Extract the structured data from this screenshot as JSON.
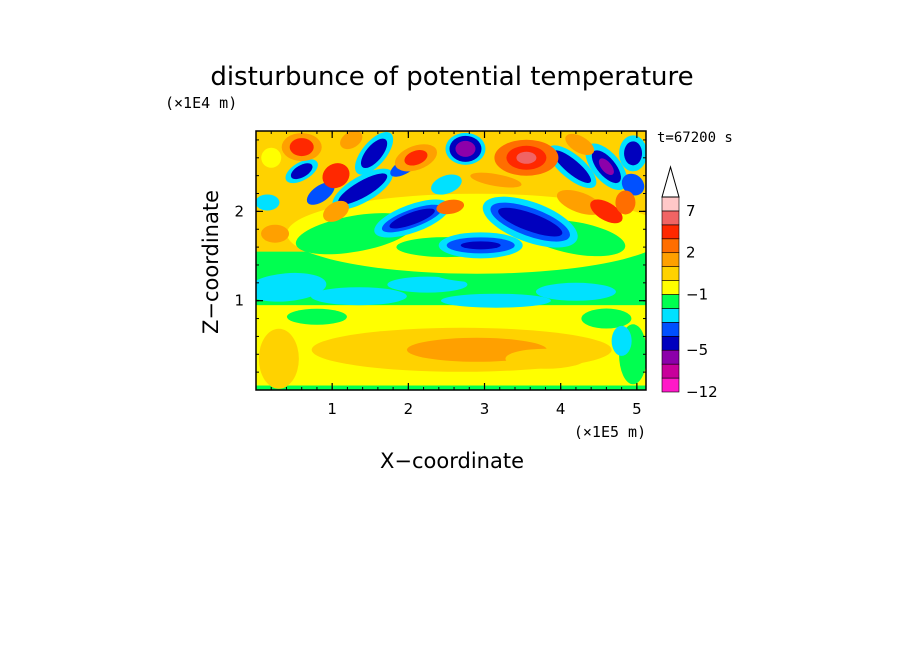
{
  "chart_data": {
    "type": "heatmap",
    "title": "disturbunce of potential temperature",
    "xlabel": "X−coordinate",
    "ylabel": "Z−coordinate",
    "x_unit": "(×1E5 m)",
    "y_unit": "(×1E4 m)",
    "time_label": "t=67200 s",
    "xlim": [
      0,
      5.12
    ],
    "ylim": [
      0,
      2.9
    ],
    "x_ticks": [
      {
        "value": 1,
        "label": "1"
      },
      {
        "value": 2,
        "label": "2"
      },
      {
        "value": 3,
        "label": "3"
      },
      {
        "value": 4,
        "label": "4"
      },
      {
        "value": 5,
        "label": "5"
      }
    ],
    "y_ticks": [
      {
        "value": 1,
        "label": "1"
      },
      {
        "value": 2,
        "label": "2"
      }
    ],
    "colorbar": {
      "levels_colors": [
        "#ff19c8",
        "#c8009b",
        "#8c00aa",
        "#0000be",
        "#0050ff",
        "#00e1ff",
        "#00ff50",
        "#ffff00",
        "#ffd200",
        "#ffa000",
        "#ff6e00",
        "#ff2800",
        "#f06464",
        "#ffc8c8"
      ],
      "labels": [
        {
          "value": -12,
          "label": "−12"
        },
        {
          "value": -5,
          "label": "−5"
        },
        {
          "value": -1,
          "label": "−1"
        },
        {
          "value": 2,
          "label": "2"
        },
        {
          "value": 7,
          "label": "7"
        }
      ]
    },
    "features": [
      {
        "x": 2.75,
        "z": 2.7,
        "value": -8
      },
      {
        "x": 3.55,
        "z": 2.6,
        "value": 6
      },
      {
        "x": 3.6,
        "z": 1.85,
        "value": -5
      },
      {
        "x": 2.95,
        "z": 1.6,
        "value": -4
      },
      {
        "x": 2.0,
        "z": 1.9,
        "value": -4
      },
      {
        "x": 1.55,
        "z": 2.6,
        "value": -5
      },
      {
        "x": 4.6,
        "z": 2.5,
        "value": -5
      },
      {
        "x": 0.6,
        "z": 2.7,
        "value": 4
      },
      {
        "x": 2.9,
        "z": 0.4,
        "value": 3
      }
    ]
  }
}
